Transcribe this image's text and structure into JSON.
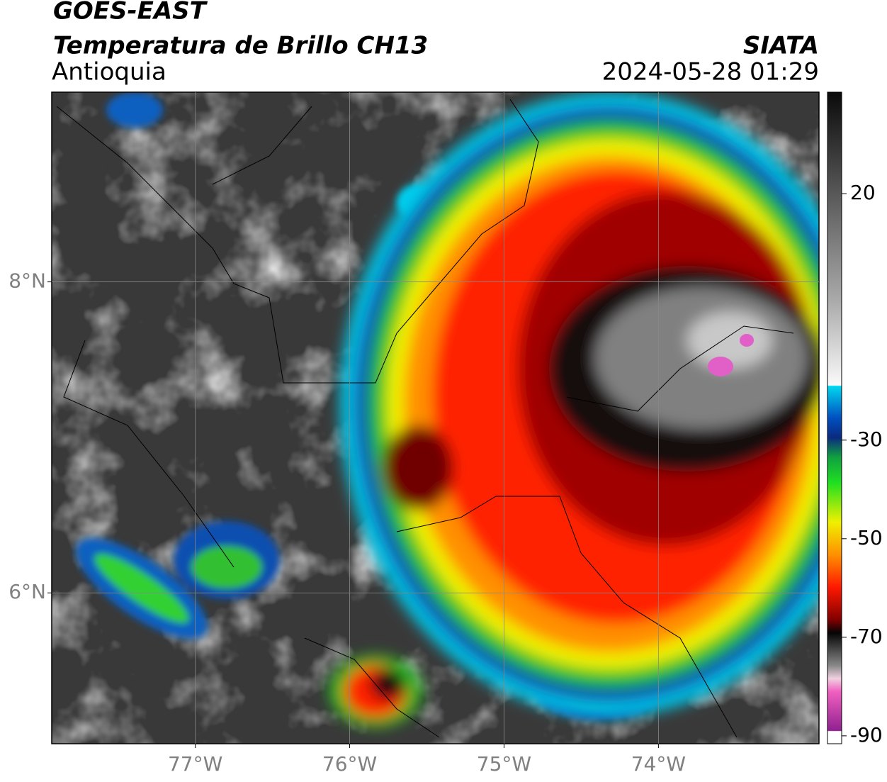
{
  "map": {
    "title": "GOES-EAST",
    "subtitle": "Temperatura de Brillo CH13",
    "region": "Antioquia",
    "source": "SIATA",
    "timestamp": "2024-05-28 01:29",
    "lonlim": [
      -77.93,
      -72.96
    ],
    "latlim": [
      5.03,
      9.22
    ],
    "lonticks": [
      {
        "value": -77,
        "label": "77°W"
      },
      {
        "value": -76,
        "label": "76°W"
      },
      {
        "value": -75,
        "label": "75°W"
      },
      {
        "value": -74,
        "label": "74°W"
      }
    ],
    "latticks": [
      {
        "value": 8,
        "label": "8°N"
      },
      {
        "value": 6,
        "label": "6°N"
      }
    ],
    "grid": true,
    "colorbar": {
      "lim": [
        -91.6,
        40.6
      ],
      "ticks": [
        20,
        -30,
        -50,
        -70,
        -90
      ]
    }
  }
}
